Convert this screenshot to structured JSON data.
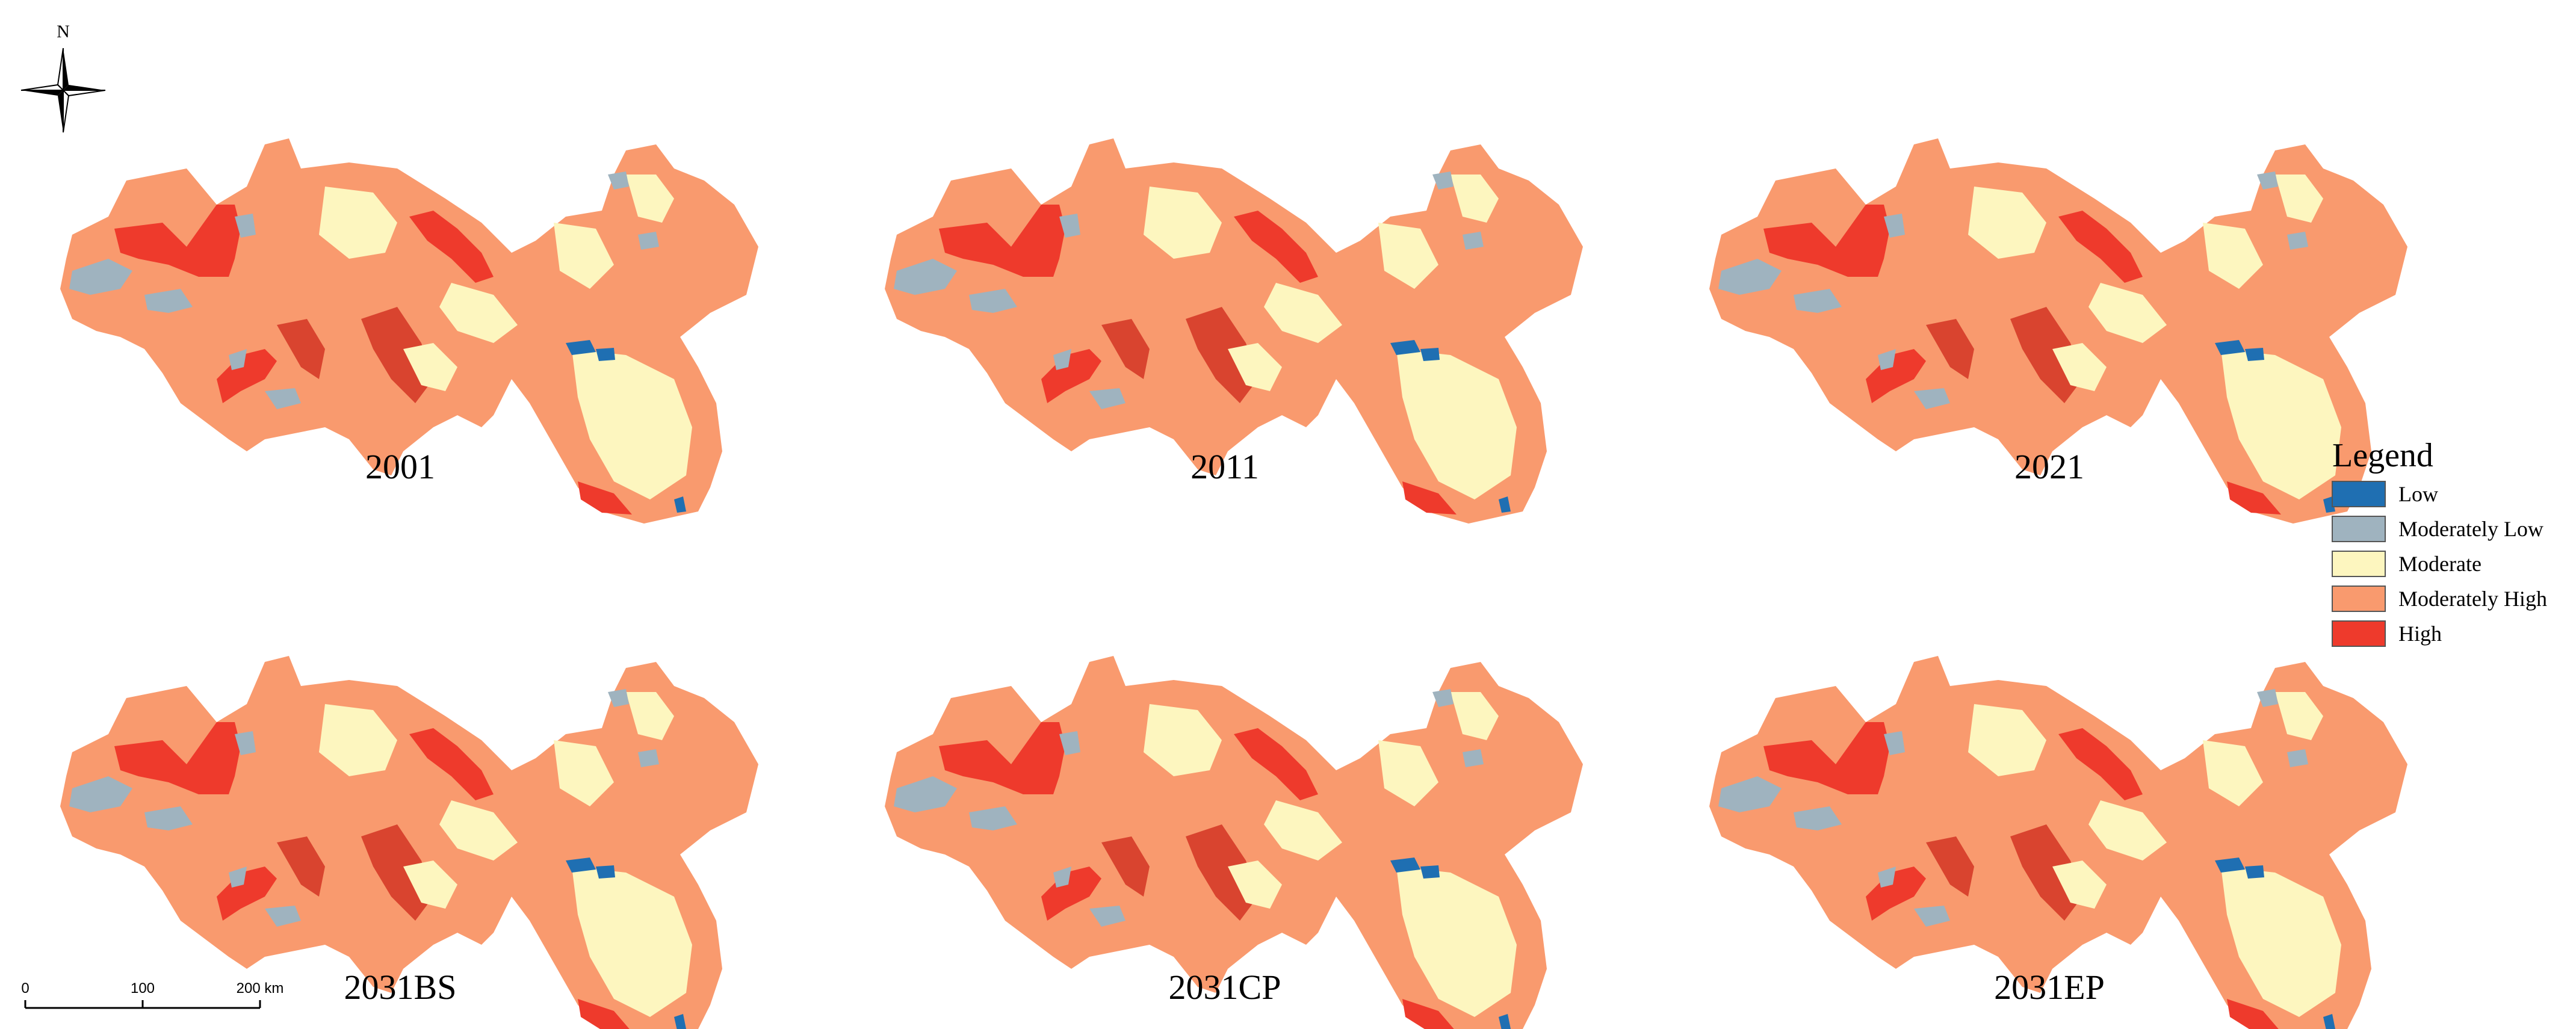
{
  "maps": [
    {
      "caption": "2001"
    },
    {
      "caption": "2011"
    },
    {
      "caption": "2021"
    },
    {
      "caption": "2031BS"
    },
    {
      "caption": "2031CP"
    },
    {
      "caption": "2031EP"
    }
  ],
  "north_arrow": {
    "label": "N",
    "icon": "north-arrow-icon"
  },
  "scale_bar": {
    "ticks": [
      "0",
      "100",
      "200 km"
    ]
  },
  "legend": {
    "title": "Legend",
    "items": [
      {
        "label": "Low",
        "color": "#1f6fb2"
      },
      {
        "label": "Moderately Low",
        "color": "#9fb3bf"
      },
      {
        "label": "Moderate",
        "color": "#fdf6bf"
      },
      {
        "label": "Moderately High",
        "color": "#f99a6e"
      },
      {
        "label": "High",
        "color": "#ee3a2c"
      }
    ]
  },
  "colors": {
    "base": "#f99a6e",
    "high": "#ee3a2c",
    "low": "#1f6fb2",
    "moderately_low": "#9fb3bf",
    "moderate": "#fdf6bf",
    "high_dark": "#d9442f"
  }
}
